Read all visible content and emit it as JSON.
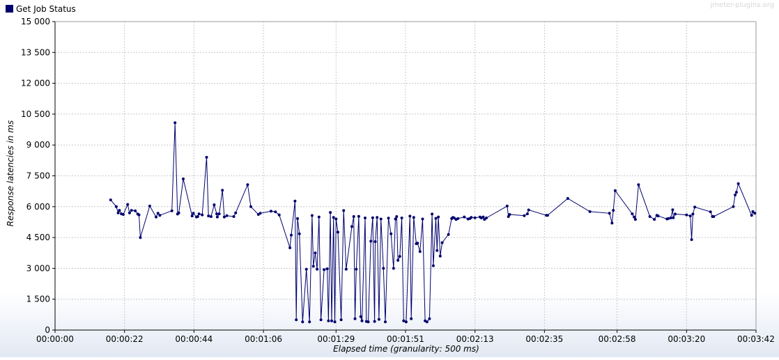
{
  "watermark": "jmeter-plugins.org",
  "colors": {
    "series": "#00006e",
    "grid": "#c8c8c8",
    "axis": "#000000",
    "background": "#e9edf5"
  },
  "chart_data": {
    "type": "line",
    "title": "",
    "xlabel": "Elapsed time (granularity: 500 ms)",
    "ylabel": "Response latencies in ms",
    "xlim": [
      0,
      222
    ],
    "ylim": [
      0,
      15000
    ],
    "grid": true,
    "legend_position": "top-left",
    "x_ticks": [
      {
        "value": 0,
        "label": "00:00:00"
      },
      {
        "value": 22,
        "label": "00:00:22"
      },
      {
        "value": 44,
        "label": "00:00:44"
      },
      {
        "value": 66,
        "label": "00:01:06"
      },
      {
        "value": 89,
        "label": "00:01:29"
      },
      {
        "value": 111,
        "label": "00:01:51"
      },
      {
        "value": 133,
        "label": "00:02:13"
      },
      {
        "value": 155,
        "label": "00:02:35"
      },
      {
        "value": 178,
        "label": "00:02:58"
      },
      {
        "value": 200,
        "label": "00:03:20"
      },
      {
        "value": 222,
        "label": "00:03:42"
      }
    ],
    "y_ticks": [
      {
        "value": 0,
        "label": "0"
      },
      {
        "value": 1500,
        "label": "1 500"
      },
      {
        "value": 3000,
        "label": "3 000"
      },
      {
        "value": 4500,
        "label": "4 500"
      },
      {
        "value": 6000,
        "label": "6 000"
      },
      {
        "value": 7500,
        "label": "7 500"
      },
      {
        "value": 9000,
        "label": "9 000"
      },
      {
        "value": 10500,
        "label": "10 500"
      },
      {
        "value": 12000,
        "label": "12 000"
      },
      {
        "value": 13500,
        "label": "13 500"
      },
      {
        "value": 15000,
        "label": "15 000"
      }
    ],
    "series": [
      {
        "name": "Get Job Status",
        "color": "#00006e",
        "points": [
          [
            17.6,
            6330
          ],
          [
            19.4,
            6000
          ],
          [
            20,
            5700
          ],
          [
            20.4,
            5820
          ],
          [
            21,
            5650
          ],
          [
            21.6,
            5620
          ],
          [
            23,
            6110
          ],
          [
            23.6,
            5700
          ],
          [
            24.2,
            5820
          ],
          [
            25.4,
            5800
          ],
          [
            26.2,
            5640
          ],
          [
            26.6,
            5600
          ],
          [
            27,
            4500
          ],
          [
            30,
            6030
          ],
          [
            32,
            5500
          ],
          [
            32.6,
            5680
          ],
          [
            33.2,
            5580
          ],
          [
            37,
            5800
          ],
          [
            38,
            10080
          ],
          [
            38.8,
            5640
          ],
          [
            39.2,
            5700
          ],
          [
            40.6,
            7350
          ],
          [
            43.4,
            5550
          ],
          [
            43.8,
            5680
          ],
          [
            44.8,
            5500
          ],
          [
            45.2,
            5520
          ],
          [
            45.6,
            5650
          ],
          [
            46.6,
            5600
          ],
          [
            48,
            8400
          ],
          [
            48.6,
            5550
          ],
          [
            49.4,
            5520
          ],
          [
            50.4,
            6090
          ],
          [
            51.2,
            5650
          ],
          [
            51.4,
            5500
          ],
          [
            52,
            5650
          ],
          [
            53,
            6800
          ],
          [
            53.6,
            5500
          ],
          [
            54.4,
            5560
          ],
          [
            56.6,
            5520
          ],
          [
            57.2,
            5700
          ],
          [
            61,
            7070
          ],
          [
            62,
            6000
          ],
          [
            64.4,
            5620
          ],
          [
            65,
            5680
          ],
          [
            68.4,
            5780
          ],
          [
            69.8,
            5750
          ],
          [
            71,
            5600
          ],
          [
            74.4,
            4000
          ],
          [
            74.8,
            4620
          ],
          [
            76,
            6270
          ],
          [
            76.4,
            500
          ],
          [
            76.8,
            5420
          ],
          [
            77.4,
            4680
          ],
          [
            78.4,
            400
          ],
          [
            79.6,
            2960
          ],
          [
            80.6,
            400
          ],
          [
            81.4,
            5570
          ],
          [
            81.8,
            3100
          ],
          [
            82.4,
            3750
          ],
          [
            83,
            2960
          ],
          [
            83.6,
            5500
          ],
          [
            84.2,
            500
          ],
          [
            85.2,
            2940
          ],
          [
            86.2,
            2980
          ],
          [
            86.6,
            450
          ],
          [
            87.2,
            5720
          ],
          [
            87.6,
            450
          ],
          [
            88.2,
            5480
          ],
          [
            88.6,
            400
          ],
          [
            89,
            5400
          ],
          [
            89.6,
            4760
          ],
          [
            90.6,
            500
          ],
          [
            91.4,
            5810
          ],
          [
            92.2,
            2960
          ],
          [
            94,
            5030
          ],
          [
            94.6,
            5520
          ],
          [
            95,
            550
          ],
          [
            95.4,
            2960
          ],
          [
            96.2,
            5530
          ],
          [
            96.8,
            650
          ],
          [
            97.2,
            450
          ],
          [
            98.2,
            5450
          ],
          [
            98.6,
            420
          ],
          [
            99.2,
            400
          ],
          [
            100,
            4320
          ],
          [
            100.6,
            5460
          ],
          [
            101.2,
            420
          ],
          [
            101.4,
            4300
          ],
          [
            102,
            5480
          ],
          [
            102.6,
            520
          ],
          [
            103.2,
            5400
          ],
          [
            104,
            3000
          ],
          [
            104.6,
            400
          ],
          [
            105.6,
            5440
          ],
          [
            106.4,
            4680
          ],
          [
            107.2,
            3000
          ],
          [
            107.8,
            5400
          ],
          [
            108.2,
            5520
          ],
          [
            108.6,
            3390
          ],
          [
            109.2,
            3580
          ],
          [
            109.8,
            5450
          ],
          [
            110.4,
            450
          ],
          [
            111.2,
            400
          ],
          [
            112.4,
            5540
          ],
          [
            112.8,
            550
          ],
          [
            113.6,
            5480
          ],
          [
            114.4,
            4200
          ],
          [
            114.8,
            4230
          ],
          [
            115.6,
            3820
          ],
          [
            116.4,
            5400
          ],
          [
            117.2,
            450
          ],
          [
            117.8,
            400
          ],
          [
            118.6,
            550
          ],
          [
            119.4,
            5640
          ],
          [
            119.8,
            3130
          ],
          [
            120.6,
            5430
          ],
          [
            121,
            3870
          ],
          [
            121.4,
            5500
          ],
          [
            122,
            3600
          ],
          [
            122.6,
            4250
          ],
          [
            124.6,
            4650
          ],
          [
            125.6,
            5420
          ],
          [
            126,
            5480
          ],
          [
            126.4,
            5450
          ],
          [
            127,
            5380
          ],
          [
            127.6,
            5420
          ],
          [
            129.6,
            5500
          ],
          [
            130.8,
            5400
          ],
          [
            131.4,
            5420
          ],
          [
            131.8,
            5480
          ],
          [
            133,
            5460
          ],
          [
            134.6,
            5500
          ],
          [
            135,
            5450
          ],
          [
            135.6,
            5500
          ],
          [
            136,
            5380
          ],
          [
            136.6,
            5450
          ],
          [
            143.2,
            6030
          ],
          [
            143.6,
            5520
          ],
          [
            144,
            5620
          ],
          [
            148.6,
            5560
          ],
          [
            149.6,
            5650
          ],
          [
            150,
            5840
          ],
          [
            155.6,
            5580
          ],
          [
            156,
            5580
          ],
          [
            162.4,
            6400
          ],
          [
            169.4,
            5760
          ],
          [
            175.6,
            5680
          ],
          [
            176.4,
            5200
          ],
          [
            176.8,
            5820
          ],
          [
            177.4,
            6780
          ],
          [
            182.8,
            5650
          ],
          [
            183.4,
            5500
          ],
          [
            183.8,
            5380
          ],
          [
            184.8,
            7070
          ],
          [
            188.4,
            5520
          ],
          [
            189.8,
            5380
          ],
          [
            190.6,
            5580
          ],
          [
            191,
            5550
          ],
          [
            193.8,
            5400
          ],
          [
            194.2,
            5420
          ],
          [
            195,
            5450
          ],
          [
            195.6,
            5850
          ],
          [
            195.8,
            5460
          ],
          [
            196.4,
            5640
          ],
          [
            200,
            5600
          ],
          [
            201.2,
            5550
          ],
          [
            201.6,
            4400
          ],
          [
            202,
            5640
          ],
          [
            202.6,
            5980
          ],
          [
            207.6,
            5750
          ],
          [
            208.2,
            5520
          ],
          [
            208.6,
            5520
          ],
          [
            214.8,
            6000
          ],
          [
            215.4,
            6570
          ],
          [
            215.8,
            6700
          ],
          [
            216.4,
            7120
          ],
          [
            220.6,
            5580
          ],
          [
            221,
            5760
          ],
          [
            221.6,
            5680
          ]
        ]
      }
    ]
  }
}
